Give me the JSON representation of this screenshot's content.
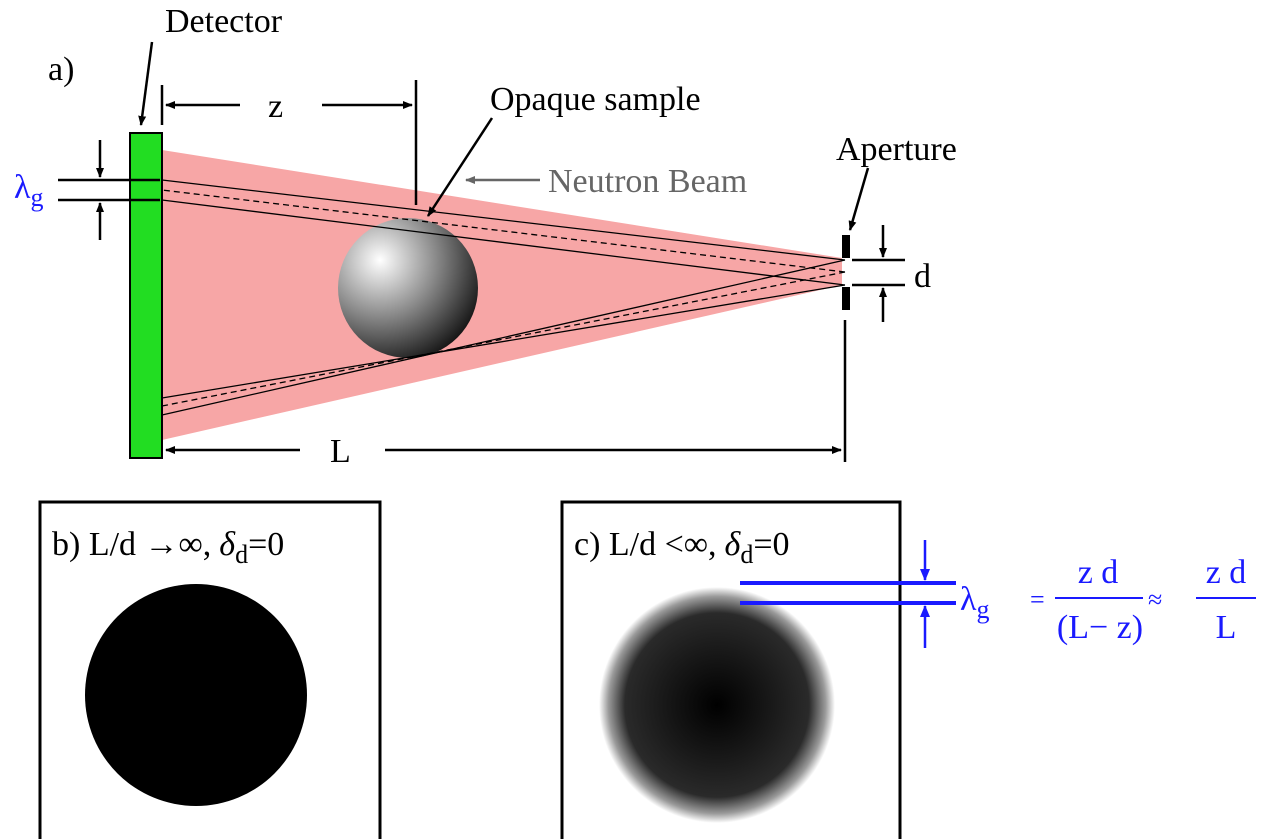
{
  "panel_a": {
    "label": "a)",
    "detector": "Detector",
    "z": "z",
    "opaque_sample": "Opaque sample",
    "neutron_beam": "Neutron Beam",
    "aperture": "Aperture",
    "lambda": "λ",
    "lambda_sub": "g",
    "d": "d",
    "L": "L"
  },
  "panel_b": {
    "label": "b) L/d →∞,",
    "delta": "δ",
    "delta_sub": "d",
    "equals": "=0"
  },
  "panel_c": {
    "label": "c) L/d <∞,",
    "delta": "δ",
    "delta_sub": "d",
    "equals": "=0"
  },
  "formula": {
    "lambda": "λ",
    "lambda_sub": "g",
    "equals": "=",
    "numerator": "z d",
    "denominator": "(L− z)",
    "approx": "≈",
    "numerator2": "z d",
    "denominator2": "L"
  }
}
